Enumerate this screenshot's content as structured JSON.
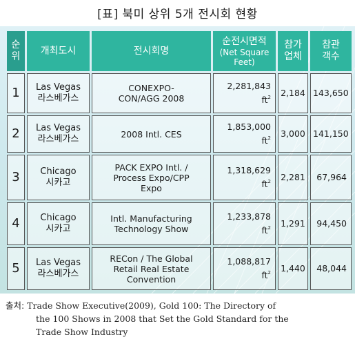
{
  "title": "[표] 북미 상위 5개 전시회 현황",
  "headers": {
    "rank": [
      "순",
      "위"
    ],
    "city": "개최도시",
    "show": "전시회명",
    "area": [
      "순전시면적",
      "(Net Square",
      "Feet)"
    ],
    "exhibitors": [
      "참가",
      "업체"
    ],
    "visitors": [
      "참관",
      "객수"
    ]
  },
  "rows": [
    {
      "rank": "1",
      "city": [
        "Las Vegas",
        "라스베가스"
      ],
      "show": [
        "CONEXPO-",
        "CON/AGG 2008"
      ],
      "area": "2,281,843 ft",
      "exhibitors": "2,184",
      "visitors": "143,650"
    },
    {
      "rank": "2",
      "city": [
        "Las Vegas",
        "라스베가스"
      ],
      "show": [
        "2008 Intl. CES"
      ],
      "area": "1,853,000 ft",
      "exhibitors": "3,000",
      "visitors": "141,150"
    },
    {
      "rank": "3",
      "city": [
        "Chicago",
        "시카고"
      ],
      "show": [
        "PACK EXPO Intl. /",
        "Process Expo/CPP",
        "Expo"
      ],
      "area": "1,318,629 ft",
      "exhibitors": "2,281",
      "visitors": "67,964"
    },
    {
      "rank": "4",
      "city": [
        "Chicago",
        "시카고"
      ],
      "show": [
        "Intl. Manufacturing",
        "Technology Show"
      ],
      "area": "1,233,878 ft",
      "exhibitors": "1,291",
      "visitors": "94,450"
    },
    {
      "rank": "5",
      "city": [
        "Las Vegas",
        "라스베가스"
      ],
      "show": [
        "RECon / The Global",
        "Retail Real Estate",
        "Convention"
      ],
      "area": "1,088,817 ft",
      "exhibitors": "1,440",
      "visitors": "48,044"
    }
  ],
  "area_unit_sup": "2",
  "source": {
    "label": "출처: ",
    "line1": "Trade Show Executive(2009), Gold 100: The Directory of",
    "line2": "the 100 Shows in 2008 that Set the Gold Standard for the",
    "line3": "Trade Show Industry"
  },
  "colors": {
    "header_green": "#2fb59f",
    "panel_bg": "#cfe9ee"
  }
}
